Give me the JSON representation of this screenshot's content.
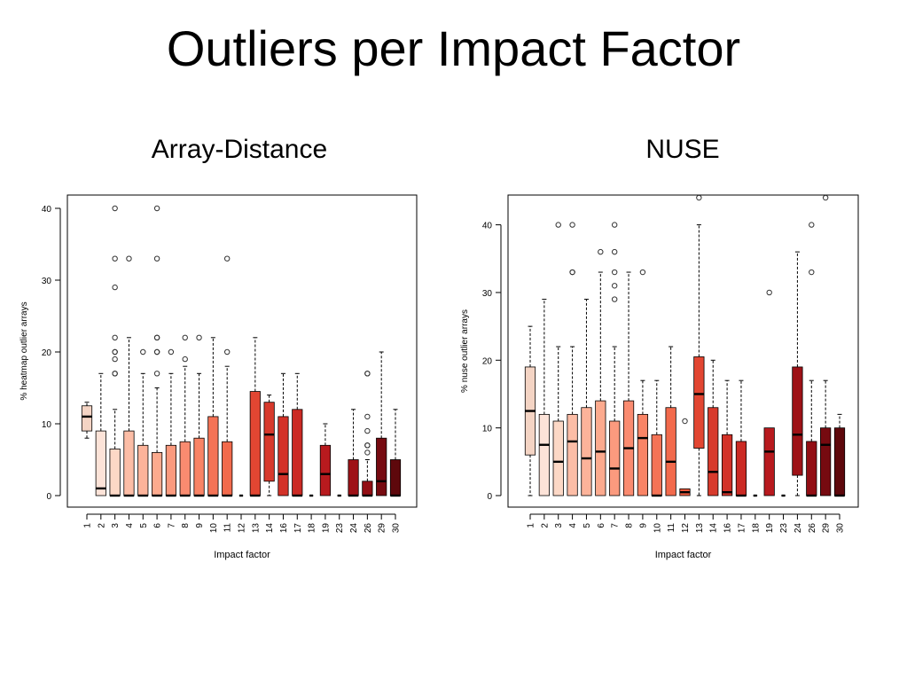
{
  "slide": {
    "title": "Outliers per Impact Factor"
  },
  "chart_data": [
    {
      "type": "box",
      "title": "Array-Distance",
      "xlabel": "Impact factor",
      "ylabel": "% heatmap outlier arrays",
      "ylim": [
        0,
        40
      ],
      "yticks": [
        0,
        10,
        20,
        30,
        40
      ],
      "categories": [
        "1",
        "2",
        "3",
        "4",
        "5",
        "6",
        "7",
        "8",
        "9",
        "10",
        "11",
        "12",
        "13",
        "14",
        "16",
        "17",
        "18",
        "19",
        "23",
        "24",
        "26",
        "29",
        "30"
      ],
      "colors": [
        "#f4d4c4",
        "#fce3d8",
        "#fcd8c6",
        "#fcbda6",
        "#fcb39a",
        "#fcaa8e",
        "#fb9a7e",
        "#fa8b70",
        "#f98466",
        "#f47356",
        "#f26a4c",
        "#ed5a3e",
        "#e24632",
        "#d73a2c",
        "#d33228",
        "#cb2a24",
        "#c02020",
        "#b81a1e",
        "#a8141a",
        "#9e1217",
        "#920e14",
        "#760a10",
        "#5e080c"
      ],
      "boxes": [
        {
          "q1": 9,
          "median": 11,
          "q3": 12.5,
          "lo": 8,
          "hi": 13,
          "outliers": []
        },
        {
          "q1": 0,
          "median": 1,
          "q3": 9,
          "lo": 0,
          "hi": 17,
          "outliers": []
        },
        {
          "q1": 0,
          "median": 0,
          "q3": 6.5,
          "lo": 0,
          "hi": 12,
          "outliers": [
            17,
            17,
            19,
            20,
            20,
            22,
            29,
            33,
            40
          ]
        },
        {
          "q1": 0,
          "median": 0,
          "q3": 9,
          "lo": 0,
          "hi": 22,
          "outliers": [
            33
          ]
        },
        {
          "q1": 0,
          "median": 0,
          "q3": 7,
          "lo": 0,
          "hi": 17,
          "outliers": [
            20
          ]
        },
        {
          "q1": 0,
          "median": 0,
          "q3": 6,
          "lo": 0,
          "hi": 15,
          "outliers": [
            17,
            20,
            20,
            22,
            22,
            33,
            40
          ]
        },
        {
          "q1": 0,
          "median": 0,
          "q3": 7,
          "lo": 0,
          "hi": 17,
          "outliers": [
            20
          ]
        },
        {
          "q1": 0,
          "median": 0,
          "q3": 7.5,
          "lo": 0,
          "hi": 18,
          "outliers": [
            19,
            22
          ]
        },
        {
          "q1": 0,
          "median": 0,
          "q3": 8,
          "lo": 0,
          "hi": 17,
          "outliers": [
            22
          ]
        },
        {
          "q1": 0,
          "median": 0,
          "q3": 11,
          "lo": 0,
          "hi": 22,
          "outliers": []
        },
        {
          "q1": 0,
          "median": 0,
          "q3": 7.5,
          "lo": 0,
          "hi": 18,
          "outliers": [
            20,
            33
          ]
        },
        {
          "q1": 0,
          "median": 0,
          "q3": 0,
          "lo": 0,
          "hi": 0,
          "outliers": []
        },
        {
          "q1": 0,
          "median": 0,
          "q3": 14.5,
          "lo": 0,
          "hi": 22,
          "outliers": []
        },
        {
          "q1": 2,
          "median": 8.5,
          "q3": 13,
          "lo": 0,
          "hi": 14,
          "outliers": []
        },
        {
          "q1": 0,
          "median": 3,
          "q3": 11,
          "lo": 0,
          "hi": 17,
          "outliers": []
        },
        {
          "q1": 0,
          "median": 0,
          "q3": 12,
          "lo": 0,
          "hi": 17,
          "outliers": []
        },
        {
          "q1": 0,
          "median": 0,
          "q3": 0,
          "lo": 0,
          "hi": 0,
          "outliers": []
        },
        {
          "q1": 0,
          "median": 3,
          "q3": 7,
          "lo": 0,
          "hi": 10,
          "outliers": []
        },
        {
          "q1": 0,
          "median": 0,
          "q3": 0,
          "lo": 0,
          "hi": 0,
          "outliers": []
        },
        {
          "q1": 0,
          "median": 0,
          "q3": 5,
          "lo": 0,
          "hi": 12,
          "outliers": []
        },
        {
          "q1": 0,
          "median": 0,
          "q3": 2,
          "lo": 0,
          "hi": 5,
          "outliers": [
            6,
            7,
            7,
            9,
            11,
            17,
            17
          ]
        },
        {
          "q1": 0,
          "median": 2,
          "q3": 8,
          "lo": 0,
          "hi": 20,
          "outliers": []
        },
        {
          "q1": 0,
          "median": 0,
          "q3": 5,
          "lo": 0,
          "hi": 12,
          "outliers": []
        }
      ]
    },
    {
      "type": "box",
      "title": "NUSE",
      "xlabel": "Impact factor",
      "ylabel": "% nuse outlier arrays",
      "ylim": [
        0,
        45
      ],
      "yticks": [
        0,
        10,
        20,
        30,
        40
      ],
      "categories": [
        "1",
        "2",
        "3",
        "4",
        "5",
        "6",
        "7",
        "8",
        "9",
        "10",
        "11",
        "12",
        "13",
        "14",
        "16",
        "17",
        "18",
        "19",
        "23",
        "24",
        "26",
        "29",
        "30"
      ],
      "colors": [
        "#f4d4c4",
        "#fce3d8",
        "#fcd8c6",
        "#fcbda6",
        "#fcb39a",
        "#fcaa8e",
        "#fb9a7e",
        "#fa8b70",
        "#f98466",
        "#f47356",
        "#f26a4c",
        "#ed5a3e",
        "#e24632",
        "#d73a2c",
        "#d33228",
        "#cb2a24",
        "#c02020",
        "#b81a1e",
        "#a8141a",
        "#9e1217",
        "#920e14",
        "#760a10",
        "#5e080c"
      ],
      "boxes": [
        {
          "q1": 6,
          "median": 12.5,
          "q3": 19,
          "lo": 0,
          "hi": 25,
          "outliers": []
        },
        {
          "q1": 0,
          "median": 7.5,
          "q3": 12,
          "lo": 0,
          "hi": 29,
          "outliers": []
        },
        {
          "q1": 0,
          "median": 5,
          "q3": 11,
          "lo": 0,
          "hi": 22,
          "outliers": [
            40
          ]
        },
        {
          "q1": 0,
          "median": 8,
          "q3": 12,
          "lo": 0,
          "hi": 22,
          "outliers": [
            33,
            33,
            40
          ]
        },
        {
          "q1": 0,
          "median": 5.5,
          "q3": 13,
          "lo": 0,
          "hi": 29,
          "outliers": []
        },
        {
          "q1": 0,
          "median": 6.5,
          "q3": 14,
          "lo": 0,
          "hi": 33,
          "outliers": [
            36
          ]
        },
        {
          "q1": 0,
          "median": 4,
          "q3": 11,
          "lo": 0,
          "hi": 22,
          "outliers": [
            29,
            31,
            33,
            36,
            40
          ]
        },
        {
          "q1": 0,
          "median": 7,
          "q3": 14,
          "lo": 0,
          "hi": 33,
          "outliers": []
        },
        {
          "q1": 0,
          "median": 8.5,
          "q3": 12,
          "lo": 0,
          "hi": 17,
          "outliers": [
            33
          ]
        },
        {
          "q1": 0,
          "median": 0,
          "q3": 9,
          "lo": 0,
          "hi": 17,
          "outliers": []
        },
        {
          "q1": 0,
          "median": 5,
          "q3": 13,
          "lo": 0,
          "hi": 22,
          "outliers": []
        },
        {
          "q1": 0,
          "median": 0.5,
          "q3": 1,
          "lo": 0,
          "hi": 1,
          "outliers": [
            11
          ]
        },
        {
          "q1": 7,
          "median": 15,
          "q3": 20.5,
          "lo": 0,
          "hi": 40,
          "outliers": [
            44
          ]
        },
        {
          "q1": 0,
          "median": 3.5,
          "q3": 13,
          "lo": 0,
          "hi": 20,
          "outliers": []
        },
        {
          "q1": 0,
          "median": 0.5,
          "q3": 9,
          "lo": 0,
          "hi": 17,
          "outliers": []
        },
        {
          "q1": 0,
          "median": 0,
          "q3": 8,
          "lo": 0,
          "hi": 17,
          "outliers": []
        },
        {
          "q1": 0,
          "median": 0,
          "q3": 0,
          "lo": 0,
          "hi": 0,
          "outliers": []
        },
        {
          "q1": 0,
          "median": 6.5,
          "q3": 10,
          "lo": 0,
          "hi": 10,
          "outliers": [
            30
          ]
        },
        {
          "q1": 0,
          "median": 0,
          "q3": 0,
          "lo": 0,
          "hi": 0,
          "outliers": []
        },
        {
          "q1": 3,
          "median": 9,
          "q3": 19,
          "lo": 0,
          "hi": 36,
          "outliers": []
        },
        {
          "q1": 0,
          "median": 0,
          "q3": 8,
          "lo": 0,
          "hi": 17,
          "outliers": [
            33,
            40
          ]
        },
        {
          "q1": 0,
          "median": 7.5,
          "q3": 10,
          "lo": 0,
          "hi": 17,
          "outliers": [
            44
          ]
        },
        {
          "q1": 0,
          "median": 0,
          "q3": 10,
          "lo": 0,
          "hi": 12,
          "outliers": []
        }
      ]
    }
  ]
}
